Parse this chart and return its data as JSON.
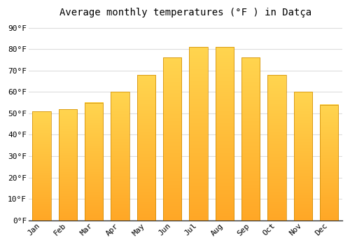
{
  "title": "Average monthly temperatures (°F ) in Datça",
  "months": [
    "Jan",
    "Feb",
    "Mar",
    "Apr",
    "May",
    "Jun",
    "Jul",
    "Aug",
    "Sep",
    "Oct",
    "Nov",
    "Dec"
  ],
  "values": [
    51,
    52,
    55,
    60,
    68,
    76,
    81,
    81,
    76,
    68,
    60,
    54
  ],
  "bar_color_main": "#FFA726",
  "bar_color_light": "#FFD54F",
  "bar_edge_color": "#B8860B",
  "background_color": "#FFFFFF",
  "grid_color": "#DDDDDD",
  "yticks": [
    0,
    10,
    20,
    30,
    40,
    50,
    60,
    70,
    80,
    90
  ],
  "ytick_labels": [
    "0°F",
    "10°F",
    "20°F",
    "30°F",
    "40°F",
    "50°F",
    "60°F",
    "70°F",
    "80°F",
    "90°F"
  ],
  "ylim": [
    0,
    93
  ],
  "title_fontsize": 10,
  "tick_fontsize": 8
}
